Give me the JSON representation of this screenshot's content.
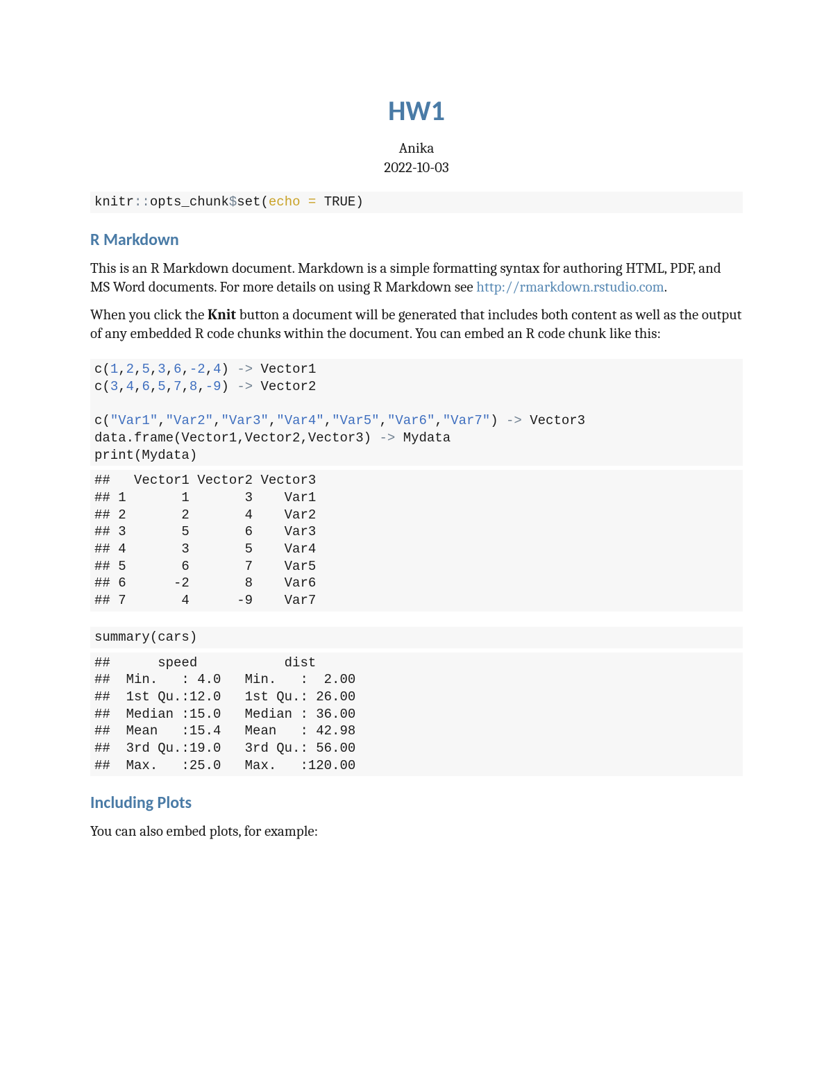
{
  "title": "HW1",
  "author": "Anika",
  "date": "2022-10-03",
  "heading_rmarkdown": "R Markdown",
  "heading_plots": "Including Plots",
  "para1_a": "This is an R Markdown document. Markdown is a simple formatting syntax for authoring HTML, PDF, and MS Word documents. For more details on using R Markdown see ",
  "link_text": "http://rmarkdown.rstudio.com",
  "para1_b": ".",
  "para2_a": "When you click the ",
  "knit": "Knit",
  "para2_b": " button a document will be generated that includes both content as well as the output of any embedded R code chunks within the document. You can embed an R code chunk like this:",
  "para_plots": "You can also embed plots, for example:",
  "code_setup": {
    "fn1": "knitr",
    "op1": "::",
    "fn2": "opts_chunk",
    "op2": "$",
    "fn3": "set",
    "paren_o": "(",
    "arg": "echo =",
    "sp": " ",
    "val": "TRUE",
    "paren_c": ")"
  },
  "code_main": {
    "c": "c",
    "po": "(",
    "pc": ")",
    "cm": ",",
    "arrow": "->",
    "sp": " ",
    "v1_nums": [
      "1",
      "2",
      "5",
      "3",
      "6",
      "-2",
      "4"
    ],
    "v1_name": "Vector1",
    "v2_nums": [
      "3",
      "4",
      "6",
      "5",
      "7",
      "8",
      "-9"
    ],
    "v2_name": "Vector2",
    "v3_strs": [
      "\"Var1\"",
      "\"Var2\"",
      "\"Var3\"",
      "\"Var4\"",
      "\"Var5\"",
      "\"Var6\"",
      "\"Var7\""
    ],
    "v3_name": "Vector3",
    "df_call": "data.frame",
    "df_args": "(Vector1,Vector2,Vector3)",
    "mydata": "Mydata",
    "print": "print",
    "print_arg": "(Mydata)"
  },
  "output_mydata": "##   Vector1 Vector2 Vector3\n## 1       1       3    Var1\n## 2       2       4    Var2\n## 3       5       6    Var3\n## 4       3       5    Var4\n## 5       6       7    Var5\n## 6      -2       8    Var6\n## 7       4      -9    Var7",
  "code_summary": {
    "fn": "summary",
    "arg": "(cars)"
  },
  "output_summary": "##      speed           dist       \n##  Min.   : 4.0   Min.   :  2.00  \n##  1st Qu.:12.0   1st Qu.: 26.00  \n##  Median :15.0   Median : 36.00  \n##  Mean   :15.4   Mean   : 42.98  \n##  3rd Qu.:19.0   3rd Qu.: 56.00  \n##  Max.   :25.0   Max.   :120.00",
  "colors": {
    "heading": "#4a7ba6",
    "link": "#5b8bb5",
    "code_bg": "#f7f7f7",
    "arg": "#c9a227",
    "op": "#708090",
    "num": "#3f6fbf",
    "text": "#1a1a1a"
  }
}
